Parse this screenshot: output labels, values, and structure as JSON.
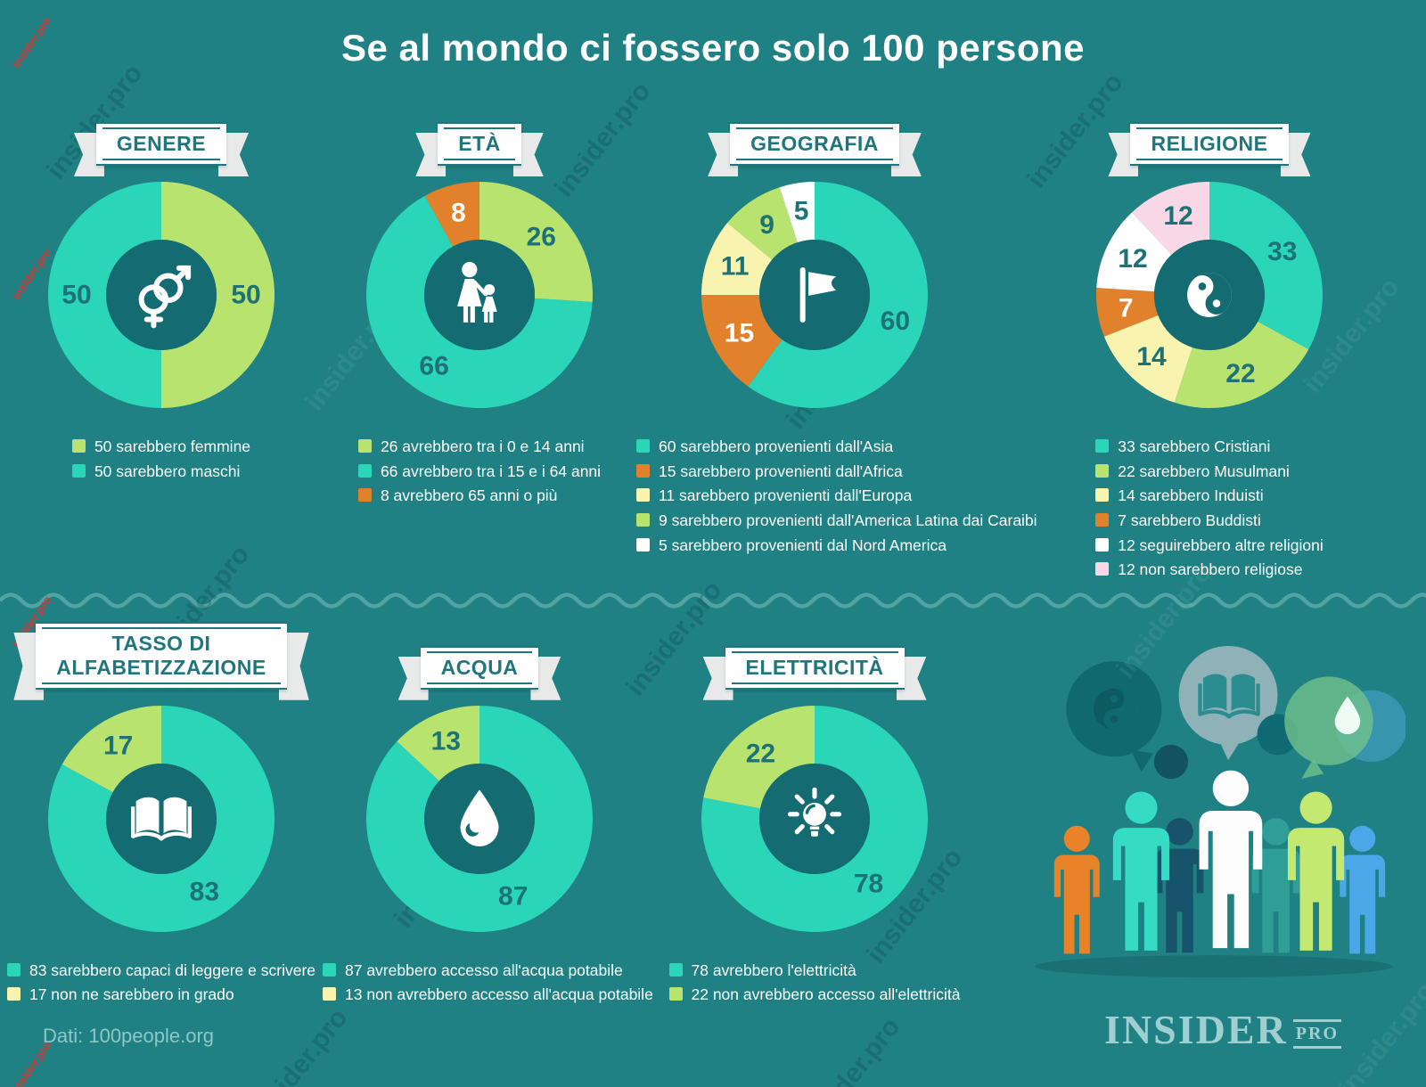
{
  "title": "Se al mondo ci fossero solo 100 persone",
  "watermark": "insider.pro",
  "palette": {
    "background": "#1f8183",
    "hole": "#156b72",
    "turquoise": "#2bd5b8",
    "green": "#b8e36f",
    "orange": "#e2812b",
    "pale_yellow": "#f8f3af",
    "pink": "#f8d7e6",
    "white": "#ffffff",
    "label_dark": "#1d7276",
    "label_light": "#ffffff"
  },
  "chart_data": [
    {
      "id": "genere",
      "type": "donut",
      "title": "GENERE",
      "icon": "gender-icon",
      "total": 100,
      "segments": [
        {
          "value": 50,
          "label": "50",
          "color": "green",
          "label_color": "dark"
        },
        {
          "value": 50,
          "label": "50",
          "color": "turquoise",
          "label_color": "dark"
        }
      ],
      "legend": [
        {
          "swatch": "green",
          "text": "50 sarebbero femmine"
        },
        {
          "swatch": "turquoise",
          "text": "50 sarebbero maschi"
        }
      ]
    },
    {
      "id": "eta",
      "type": "donut",
      "title": "ETÀ",
      "icon": "family-icon",
      "total": 100,
      "segments": [
        {
          "value": 26,
          "label": "26",
          "color": "green",
          "label_color": "dark"
        },
        {
          "value": 66,
          "label": "66",
          "color": "turquoise",
          "label_color": "dark"
        },
        {
          "value": 8,
          "label": "8",
          "color": "orange",
          "label_color": "light"
        }
      ],
      "legend": [
        {
          "swatch": "green",
          "text": "26 avrebbero tra i 0 e 14 anni"
        },
        {
          "swatch": "turquoise",
          "text": "66 avrebbero tra i 15 e i 64 anni"
        },
        {
          "swatch": "orange",
          "text": "8 avrebbero 65 anni o più"
        }
      ]
    },
    {
      "id": "geografia",
      "type": "donut",
      "title": "GEOGRAFIA",
      "icon": "flag-icon",
      "total": 100,
      "segments": [
        {
          "value": 60,
          "label": "60",
          "color": "turquoise",
          "label_color": "dark"
        },
        {
          "value": 15,
          "label": "15",
          "color": "orange",
          "label_color": "light"
        },
        {
          "value": 11,
          "label": "11",
          "color": "pale_yellow",
          "label_color": "dark"
        },
        {
          "value": 9,
          "label": "9",
          "color": "green",
          "label_color": "dark"
        },
        {
          "value": 5,
          "label": "5",
          "color": "white",
          "label_color": "dark"
        }
      ],
      "legend": [
        {
          "swatch": "turquoise",
          "text": "60 sarebbero provenienti dall'Asia"
        },
        {
          "swatch": "orange",
          "text": "15 sarebbero provenienti dall'Africa"
        },
        {
          "swatch": "pale_yellow",
          "text": "11  sarebbero provenienti dall'Europa"
        },
        {
          "swatch": "green",
          "text": "9  sarebbero provenienti dall'America Latina dai Caraibi"
        },
        {
          "swatch": "white",
          "text": "5  sarebbero provenienti dal Nord America"
        }
      ]
    },
    {
      "id": "religione",
      "type": "donut",
      "title": "RELIGIONE",
      "icon": "yin-yang-icon",
      "total": 100,
      "segments": [
        {
          "value": 33,
          "label": "33",
          "color": "turquoise",
          "label_color": "dark"
        },
        {
          "value": 22,
          "label": "22",
          "color": "green",
          "label_color": "dark"
        },
        {
          "value": 14,
          "label": "14",
          "color": "pale_yellow",
          "label_color": "dark"
        },
        {
          "value": 7,
          "label": "7",
          "color": "orange",
          "label_color": "light"
        },
        {
          "value": 12,
          "label": "12",
          "color": "white",
          "label_color": "dark"
        },
        {
          "value": 12,
          "label": "12",
          "color": "pink",
          "label_color": "dark"
        }
      ],
      "legend": [
        {
          "swatch": "turquoise",
          "text": "33 sarebbero Cristiani"
        },
        {
          "swatch": "green",
          "text": "22 sarebbero Musulmani"
        },
        {
          "swatch": "pale_yellow",
          "text": "14 sarebbero Induisti"
        },
        {
          "swatch": "orange",
          "text": "7 sarebbero Buddisti"
        },
        {
          "swatch": "white",
          "text": "12 seguirebbero altre religioni"
        },
        {
          "swatch": "pink",
          "text": "12 non sarebbero religiose"
        }
      ]
    },
    {
      "id": "alfabetizzazione",
      "type": "donut",
      "title": "TASSO DI\nALFABETIZZAZIONE",
      "icon": "book-icon",
      "total": 100,
      "segments": [
        {
          "value": 83,
          "label": "83",
          "color": "turquoise",
          "label_color": "dark"
        },
        {
          "value": 17,
          "label": "17",
          "color": "green",
          "label_color": "dark"
        }
      ],
      "legend": [
        {
          "swatch": "turquoise",
          "text": "83 sarebbero capaci di leggere e scrivere"
        },
        {
          "swatch": "pale_yellow",
          "text": "17 non ne sarebbero in grado"
        }
      ]
    },
    {
      "id": "acqua",
      "type": "donut",
      "title": "ACQUA",
      "icon": "water-drop-icon",
      "total": 100,
      "segments": [
        {
          "value": 87,
          "label": "87",
          "color": "turquoise",
          "label_color": "dark"
        },
        {
          "value": 13,
          "label": "13",
          "color": "green",
          "label_color": "dark"
        }
      ],
      "legend": [
        {
          "swatch": "turquoise",
          "text": "87 avrebbero accesso all'acqua potabile"
        },
        {
          "swatch": "pale_yellow",
          "text": "13 non avrebbero accesso all'acqua potabile"
        }
      ]
    },
    {
      "id": "elettricita",
      "type": "donut",
      "title": "ELETTRICITÀ",
      "icon": "light-bulb-icon",
      "total": 100,
      "segments": [
        {
          "value": 78,
          "label": "78",
          "color": "turquoise",
          "label_color": "dark"
        },
        {
          "value": 22,
          "label": "22",
          "color": "green",
          "label_color": "dark"
        }
      ],
      "legend": [
        {
          "swatch": "turquoise",
          "text": "78 avrebbero l'elettricità"
        },
        {
          "swatch": "green",
          "text": "22 non avrebbero accesso all'elettricità"
        }
      ]
    }
  ],
  "footer": {
    "source": "Dati: 100people.org",
    "brand": "INSIDER",
    "brand_suffix": "PRO"
  }
}
